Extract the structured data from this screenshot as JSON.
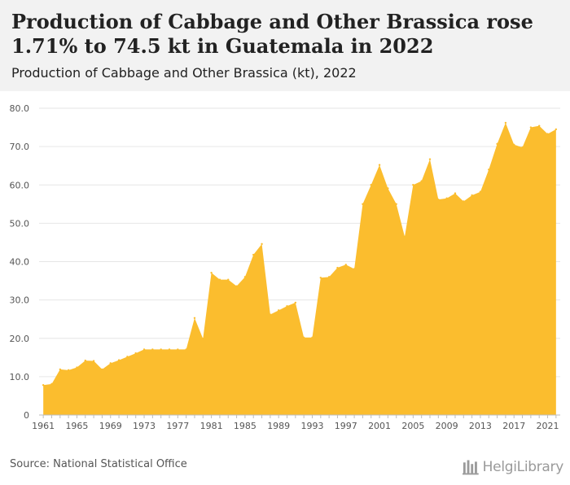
{
  "header": {
    "title": "Production of Cabbage and Other Brassica rose 1.71% to 74.5 kt in Guatemala in 2022",
    "subtitle": "Production of Cabbage and Other Brassica (kt), 2022"
  },
  "footer": {
    "source": "Source: National Statistical Office",
    "logo_text": "HelgiLibrary"
  },
  "colors": {
    "area": "#fbbd2e",
    "grid": "#e6e6e6",
    "axis_text": "#555555",
    "header_bg": "#f2f2f2"
  },
  "chart_data": {
    "type": "area",
    "title": "Production of Cabbage and Other Brassica (kt), 2022",
    "xlabel": "",
    "ylabel": "",
    "ylim": [
      0,
      80
    ],
    "yticks": [
      "0",
      "10.0",
      "20.0",
      "30.0",
      "40.0",
      "50.0",
      "60.0",
      "70.0",
      "80.0"
    ],
    "xticks": [
      "1961",
      "1965",
      "1969",
      "1973",
      "1977",
      "1981",
      "1985",
      "1989",
      "1993",
      "1997",
      "2001",
      "2005",
      "2009",
      "2013",
      "2017",
      "2021"
    ],
    "grid": true,
    "legend": "none",
    "series": [
      {
        "values": [
          [
            1961,
            7.8
          ],
          [
            1962,
            8.1
          ],
          [
            1963,
            11.9
          ],
          [
            1964,
            11.7
          ],
          [
            1965,
            12.4
          ],
          [
            1966,
            14.2
          ],
          [
            1967,
            14.1
          ],
          [
            1968,
            11.9
          ],
          [
            1969,
            13.5
          ],
          [
            1970,
            14.3
          ],
          [
            1971,
            15.2
          ],
          [
            1972,
            16.1
          ],
          [
            1973,
            17.1
          ],
          [
            1974,
            17.1
          ],
          [
            1975,
            17.1
          ],
          [
            1976,
            17.1
          ],
          [
            1977,
            17.1
          ],
          [
            1978,
            17.1
          ],
          [
            1979,
            25.3
          ],
          [
            1980,
            19.9
          ],
          [
            1981,
            37.1
          ],
          [
            1982,
            35.3
          ],
          [
            1983,
            35.3
          ],
          [
            1984,
            33.6
          ],
          [
            1985,
            36.0
          ],
          [
            1986,
            41.8
          ],
          [
            1987,
            44.6
          ],
          [
            1988,
            26.2
          ],
          [
            1989,
            27.3
          ],
          [
            1990,
            28.4
          ],
          [
            1991,
            29.3
          ],
          [
            1992,
            20.2
          ],
          [
            1993,
            20.2
          ],
          [
            1994,
            35.8
          ],
          [
            1995,
            36.0
          ],
          [
            1996,
            38.4
          ],
          [
            1997,
            39.2
          ],
          [
            1998,
            38.1
          ],
          [
            1999,
            55.0
          ],
          [
            2000,
            60.0
          ],
          [
            2001,
            65.2
          ],
          [
            2002,
            59.1
          ],
          [
            2003,
            55.0
          ],
          [
            2004,
            46.5
          ],
          [
            2005,
            60.0
          ],
          [
            2006,
            61.0
          ],
          [
            2007,
            66.7
          ],
          [
            2008,
            56.2
          ],
          [
            2009,
            56.5
          ],
          [
            2010,
            57.8
          ],
          [
            2011,
            55.7
          ],
          [
            2012,
            57.3
          ],
          [
            2013,
            58.2
          ],
          [
            2014,
            64.0
          ],
          [
            2015,
            70.7
          ],
          [
            2016,
            76.2
          ],
          [
            2017,
            70.5
          ],
          [
            2018,
            69.8
          ],
          [
            2019,
            75.0
          ],
          [
            2020,
            75.4
          ],
          [
            2021,
            73.3
          ],
          [
            2022,
            74.5
          ]
        ]
      }
    ]
  }
}
